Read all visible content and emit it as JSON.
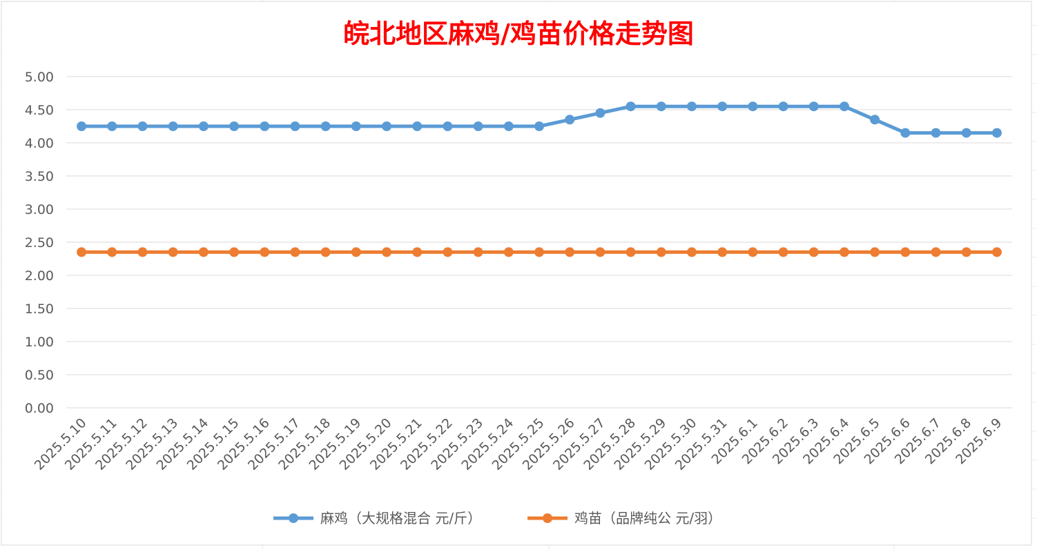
{
  "chart_data": {
    "type": "line",
    "title": "皖北地区麻鸡/鸡苗价格走势图",
    "title_color": "#ff0000",
    "xlabel": "",
    "ylabel": "",
    "ylim": [
      0,
      5
    ],
    "yticks": [
      "0.00",
      "0.50",
      "1.00",
      "1.50",
      "2.00",
      "2.50",
      "3.00",
      "3.50",
      "4.00",
      "4.50",
      "5.00"
    ],
    "grid": true,
    "legend_position": "bottom",
    "categories": [
      "2025.5.10",
      "2025.5.11",
      "2025.5.12",
      "2025.5.13",
      "2025.5.14",
      "2025.5.15",
      "2025.5.16",
      "2025.5.17",
      "2025.5.18",
      "2025.5.19",
      "2025.5.20",
      "2025.5.21",
      "2025.5.22",
      "2025.5.23",
      "2025.5.24",
      "2025.5.25",
      "2025.5.26",
      "2025.5.27",
      "2025.5.28",
      "2025.5.29",
      "2025.5.30",
      "2025.5.31",
      "2025.6.1",
      "2025.6.2",
      "2025.6.3",
      "2025.6.4",
      "2025.6.5",
      "2025.6.6",
      "2025.6.7",
      "2025.6.8",
      "2025.6.9"
    ],
    "series": [
      {
        "name": "麻鸡（大规格混合 元/斤）",
        "color": "#5b9bd5",
        "values": [
          4.25,
          4.25,
          4.25,
          4.25,
          4.25,
          4.25,
          4.25,
          4.25,
          4.25,
          4.25,
          4.25,
          4.25,
          4.25,
          4.25,
          4.25,
          4.25,
          4.35,
          4.45,
          4.55,
          4.55,
          4.55,
          4.55,
          4.55,
          4.55,
          4.55,
          4.55,
          4.35,
          4.15,
          4.15,
          4.15,
          4.15
        ]
      },
      {
        "name": "鸡苗（品牌纯公 元/羽）",
        "color": "#ed7d31",
        "values": [
          2.35,
          2.35,
          2.35,
          2.35,
          2.35,
          2.35,
          2.35,
          2.35,
          2.35,
          2.35,
          2.35,
          2.35,
          2.35,
          2.35,
          2.35,
          2.35,
          2.35,
          2.35,
          2.35,
          2.35,
          2.35,
          2.35,
          2.35,
          2.35,
          2.35,
          2.35,
          2.35,
          2.35,
          2.35,
          2.35,
          2.35
        ]
      }
    ]
  }
}
